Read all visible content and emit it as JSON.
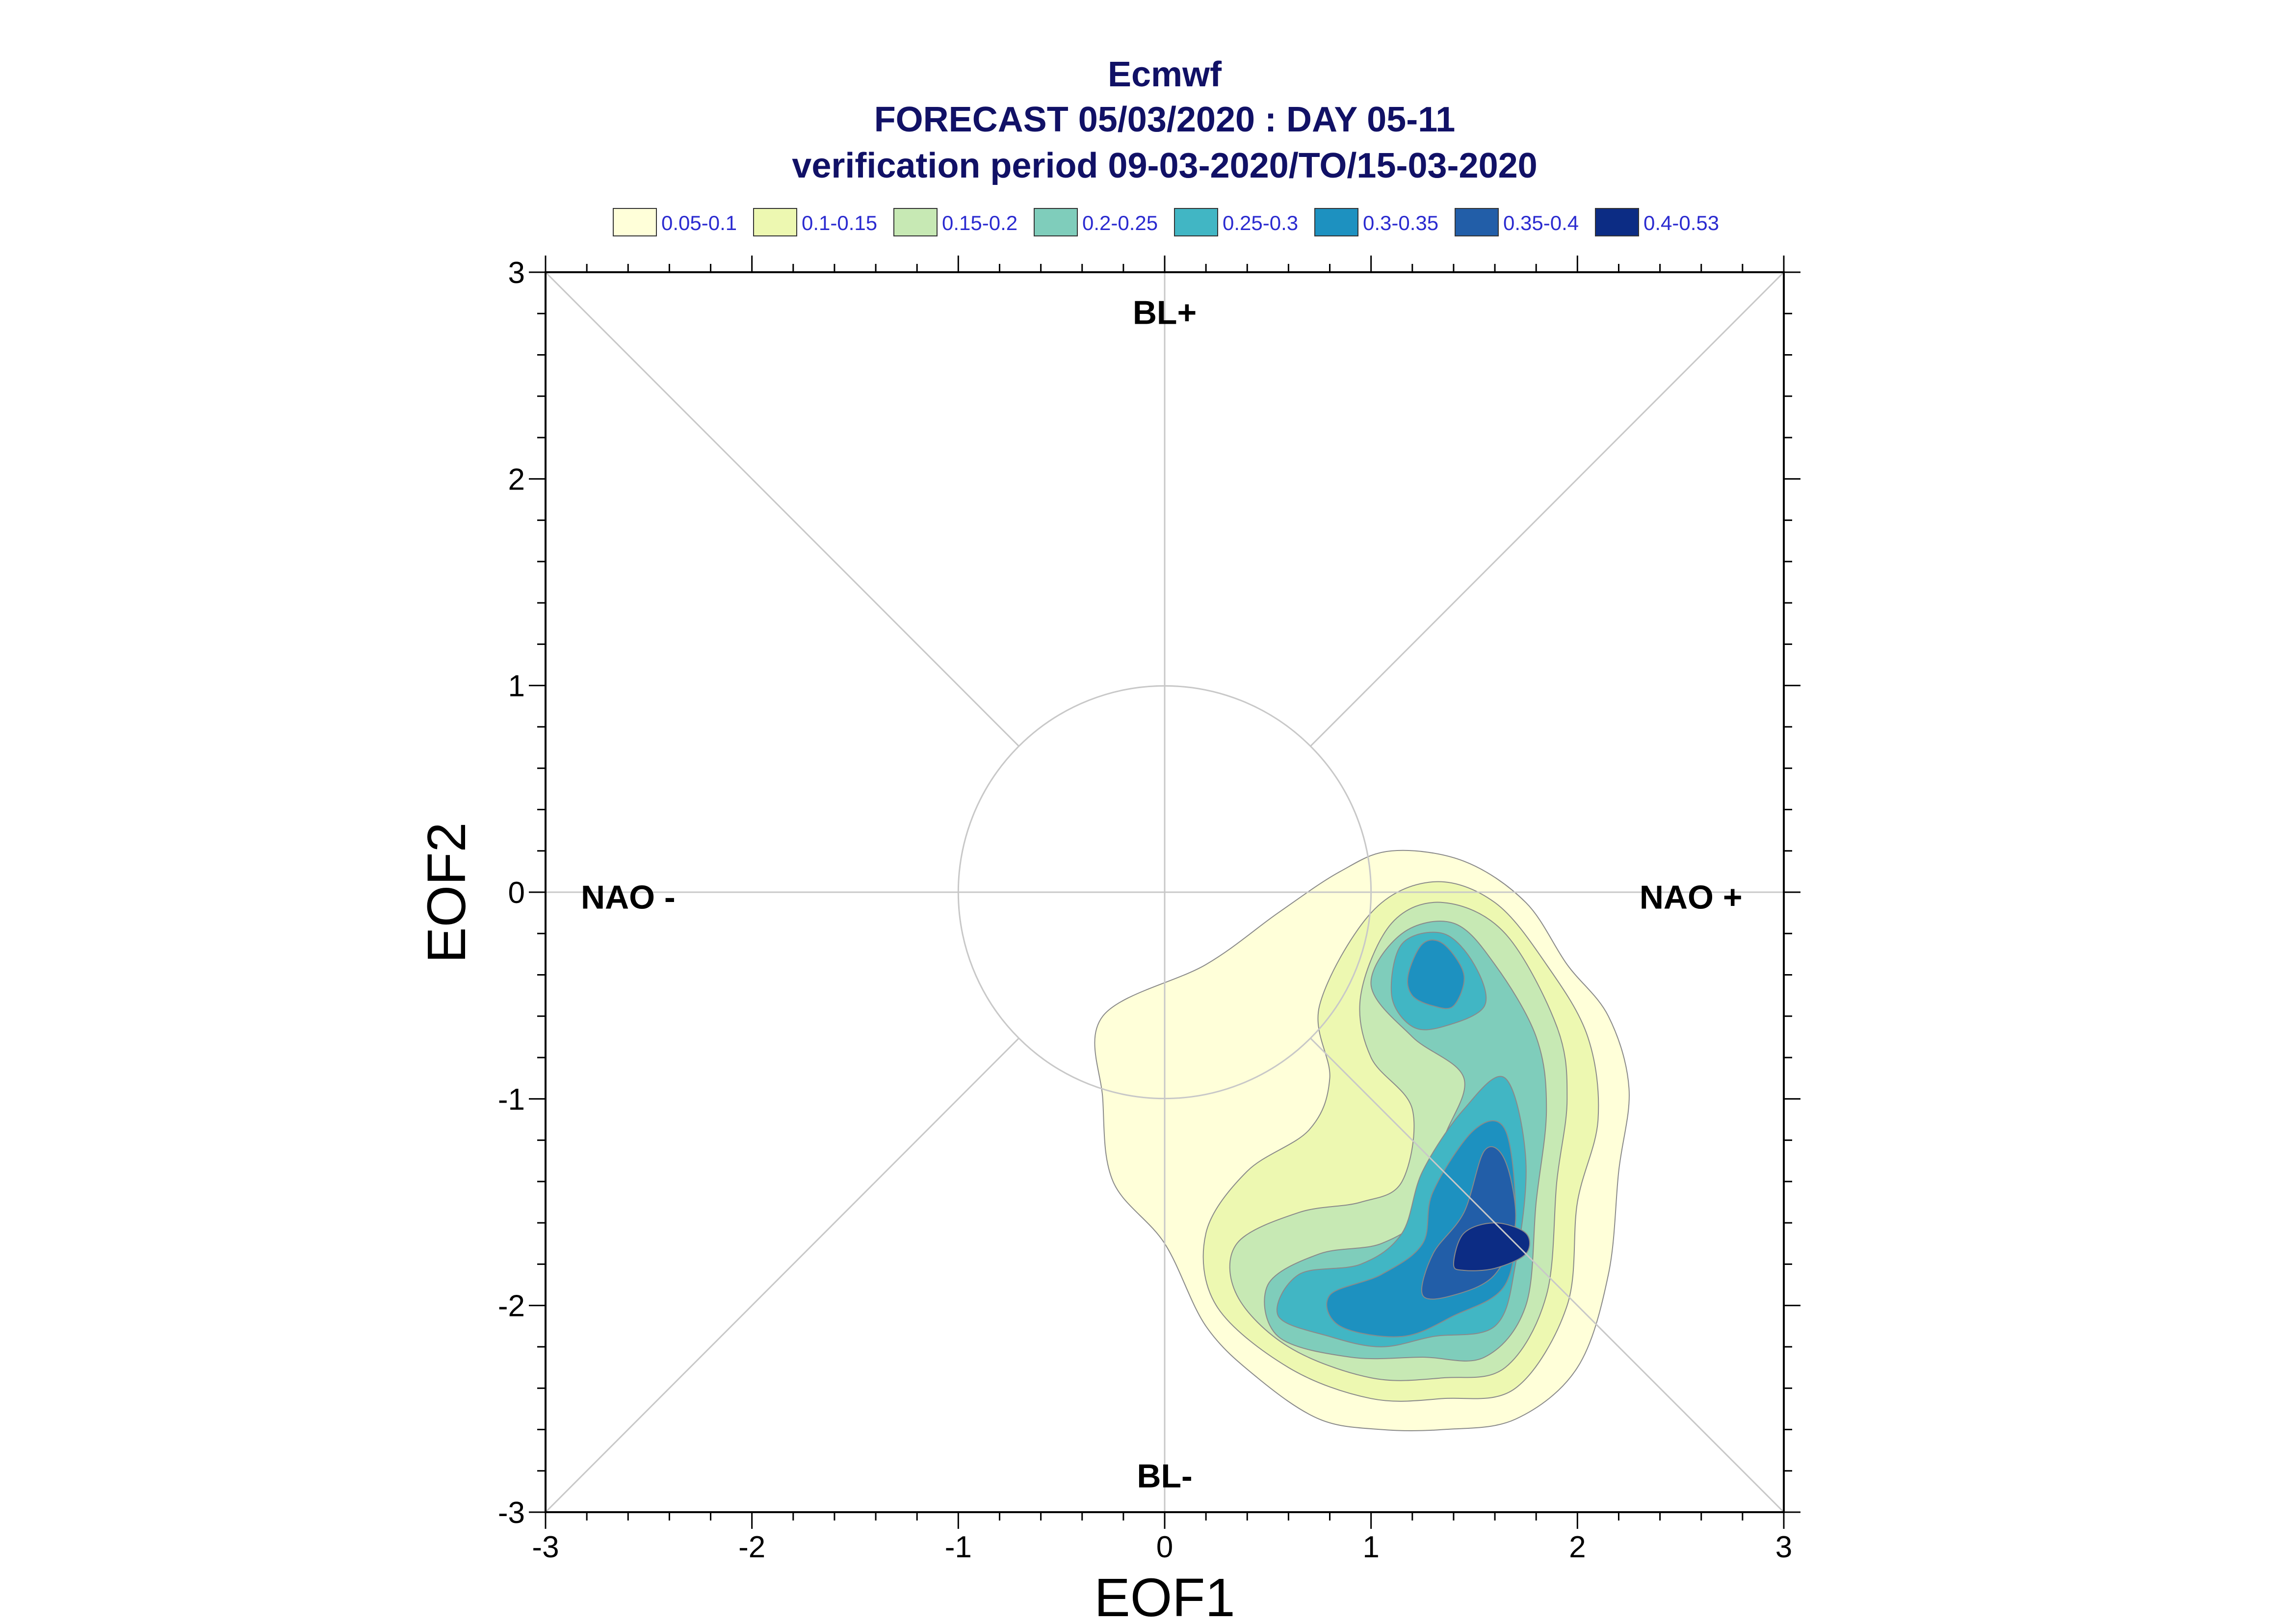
{
  "chart_data": {
    "type": "contour",
    "title": "Ecmwf",
    "subtitle": "FORECAST 05/03/2020 : DAY 05-11",
    "subtitle2": "verification period 09-03-2020/TO/15-03-2020",
    "xlabel": "EOF1",
    "ylabel": "EOF2",
    "xlim": [
      -3,
      3
    ],
    "ylim": [
      -3,
      3
    ],
    "xticks": [
      -3,
      -2,
      -1,
      0,
      1,
      2,
      3
    ],
    "yticks": [
      -3,
      -2,
      -1,
      0,
      1,
      2,
      3
    ],
    "xtick_labels": [
      "-3",
      "-2",
      "-1",
      "0",
      "1",
      "2",
      "3"
    ],
    "ytick_labels": [
      "-3",
      "-2",
      "-1",
      "0",
      "1",
      "2",
      "3"
    ],
    "grid": false,
    "reference_circle_radius": 1,
    "regime_labels": [
      {
        "text": "BL+",
        "x": 0,
        "y": 2.75
      },
      {
        "text": "BL-",
        "x": 0,
        "y": -2.88
      },
      {
        "text": "NAO -",
        "x": -2.6,
        "y": -0.08
      },
      {
        "text": "NAO +",
        "x": 2.55,
        "y": -0.08
      }
    ],
    "legend": [
      {
        "label": "0.05-0.1",
        "color": "#ffffd9"
      },
      {
        "label": "0.1-0.15",
        "color": "#edf8b1"
      },
      {
        "label": "0.15-0.2",
        "color": "#c7e9b4"
      },
      {
        "label": "0.2-0.25",
        "color": "#7fcdbb"
      },
      {
        "label": "0.25-0.3",
        "color": "#41b6c4"
      },
      {
        "label": "0.3-0.35",
        "color": "#1d91c0"
      },
      {
        "label": "0.35-0.4",
        "color": "#225ea8"
      },
      {
        "label": "0.4-0.53",
        "color": "#0c2c84"
      }
    ],
    "contour_levels": [
      {
        "level": "0.05-0.1",
        "regions": [
          [
            [
              -0.3,
              -0.6
            ],
            [
              0.2,
              -0.35
            ],
            [
              0.55,
              -0.1
            ],
            [
              0.85,
              0.1
            ],
            [
              1.1,
              0.2
            ],
            [
              1.45,
              0.15
            ],
            [
              1.75,
              -0.05
            ],
            [
              1.95,
              -0.35
            ],
            [
              2.15,
              -0.6
            ],
            [
              2.25,
              -0.95
            ],
            [
              2.2,
              -1.35
            ],
            [
              2.15,
              -1.85
            ],
            [
              2.0,
              -2.3
            ],
            [
              1.7,
              -2.55
            ],
            [
              1.35,
              -2.6
            ],
            [
              1.05,
              -2.6
            ],
            [
              0.75,
              -2.55
            ],
            [
              0.45,
              -2.35
            ],
            [
              0.2,
              -2.1
            ],
            [
              0.0,
              -1.7
            ],
            [
              -0.25,
              -1.4
            ],
            [
              -0.3,
              -1.0
            ]
          ]
        ]
      },
      {
        "level": "0.1-0.15",
        "regions": [
          [
            [
              0.75,
              -0.55
            ],
            [
              1.0,
              -0.1
            ],
            [
              1.3,
              0.05
            ],
            [
              1.6,
              -0.05
            ],
            [
              1.85,
              -0.35
            ],
            [
              2.05,
              -0.7
            ],
            [
              2.1,
              -1.1
            ],
            [
              2.0,
              -1.5
            ],
            [
              1.95,
              -2.0
            ],
            [
              1.7,
              -2.4
            ],
            [
              1.35,
              -2.45
            ],
            [
              1.0,
              -2.45
            ],
            [
              0.6,
              -2.3
            ],
            [
              0.25,
              -2.0
            ],
            [
              0.2,
              -1.65
            ],
            [
              0.4,
              -1.35
            ],
            [
              0.7,
              -1.15
            ],
            [
              0.8,
              -0.9
            ]
          ]
        ]
      },
      {
        "level": "0.15-0.2",
        "regions": [
          [
            [
              0.95,
              -0.5
            ],
            [
              1.1,
              -0.15
            ],
            [
              1.35,
              -0.05
            ],
            [
              1.65,
              -0.2
            ],
            [
              1.9,
              -0.65
            ],
            [
              1.95,
              -1.0
            ],
            [
              1.9,
              -1.4
            ],
            [
              1.85,
              -1.95
            ],
            [
              1.65,
              -2.3
            ],
            [
              1.35,
              -2.35
            ],
            [
              1.0,
              -2.35
            ],
            [
              0.6,
              -2.2
            ],
            [
              0.35,
              -1.95
            ],
            [
              0.35,
              -1.7
            ],
            [
              0.65,
              -1.55
            ],
            [
              0.95,
              -1.5
            ],
            [
              1.15,
              -1.4
            ],
            [
              1.2,
              -1.05
            ],
            [
              1.0,
              -0.8
            ]
          ]
        ]
      },
      {
        "level": "0.2-0.25",
        "regions": [
          [
            [
              1.0,
              -0.45
            ],
            [
              1.15,
              -0.2
            ],
            [
              1.4,
              -0.15
            ],
            [
              1.6,
              -0.35
            ],
            [
              1.8,
              -0.7
            ],
            [
              1.85,
              -1.05
            ],
            [
              1.8,
              -1.5
            ],
            [
              1.75,
              -2.0
            ],
            [
              1.55,
              -2.25
            ],
            [
              1.25,
              -2.25
            ],
            [
              0.9,
              -2.25
            ],
            [
              0.55,
              -2.15
            ],
            [
              0.5,
              -1.9
            ],
            [
              0.75,
              -1.75
            ],
            [
              1.05,
              -1.7
            ],
            [
              1.25,
              -1.55
            ],
            [
              1.35,
              -1.2
            ],
            [
              1.45,
              -0.9
            ],
            [
              1.2,
              -0.7
            ]
          ]
        ]
      },
      {
        "level": "0.25-0.3",
        "regions": [
          [
            [
              1.1,
              -0.5
            ],
            [
              1.15,
              -0.25
            ],
            [
              1.35,
              -0.2
            ],
            [
              1.5,
              -0.35
            ],
            [
              1.55,
              -0.55
            ],
            [
              1.35,
              -0.65
            ],
            [
              1.2,
              -0.65
            ]
          ],
          [
            [
              1.25,
              -1.35
            ],
            [
              1.45,
              -1.05
            ],
            [
              1.65,
              -0.9
            ],
            [
              1.75,
              -1.3
            ],
            [
              1.7,
              -1.8
            ],
            [
              1.6,
              -2.1
            ],
            [
              1.3,
              -2.15
            ],
            [
              1.05,
              -2.2
            ],
            [
              0.8,
              -2.15
            ],
            [
              0.55,
              -2.05
            ],
            [
              0.65,
              -1.85
            ],
            [
              0.95,
              -1.8
            ],
            [
              1.15,
              -1.65
            ]
          ]
        ]
      },
      {
        "level": "0.3-0.35",
        "regions": [
          [
            [
              1.18,
              -0.4
            ],
            [
              1.25,
              -0.25
            ],
            [
              1.35,
              -0.25
            ],
            [
              1.45,
              -0.4
            ],
            [
              1.4,
              -0.55
            ],
            [
              1.3,
              -0.55
            ],
            [
              1.2,
              -0.5
            ]
          ],
          [
            [
              1.3,
              -1.45
            ],
            [
              1.5,
              -1.15
            ],
            [
              1.65,
              -1.15
            ],
            [
              1.7,
              -1.55
            ],
            [
              1.65,
              -1.9
            ],
            [
              1.4,
              -2.05
            ],
            [
              1.15,
              -2.15
            ],
            [
              0.85,
              -2.1
            ],
            [
              0.8,
              -1.95
            ],
            [
              1.05,
              -1.85
            ],
            [
              1.25,
              -1.7
            ]
          ]
        ]
      },
      {
        "level": "0.35-0.4",
        "regions": [
          [
            [
              1.25,
              -1.95
            ],
            [
              1.3,
              -1.75
            ],
            [
              1.45,
              -1.55
            ],
            [
              1.55,
              -1.25
            ],
            [
              1.65,
              -1.3
            ],
            [
              1.7,
              -1.6
            ],
            [
              1.6,
              -1.85
            ],
            [
              1.4,
              -1.95
            ]
          ]
        ]
      },
      {
        "level": "0.4-0.53",
        "regions": [
          [
            [
              1.4,
              -1.8
            ],
            [
              1.45,
              -1.65
            ],
            [
              1.6,
              -1.6
            ],
            [
              1.75,
              -1.65
            ],
            [
              1.75,
              -1.75
            ],
            [
              1.6,
              -1.82
            ],
            [
              1.45,
              -1.83
            ]
          ]
        ]
      }
    ]
  }
}
